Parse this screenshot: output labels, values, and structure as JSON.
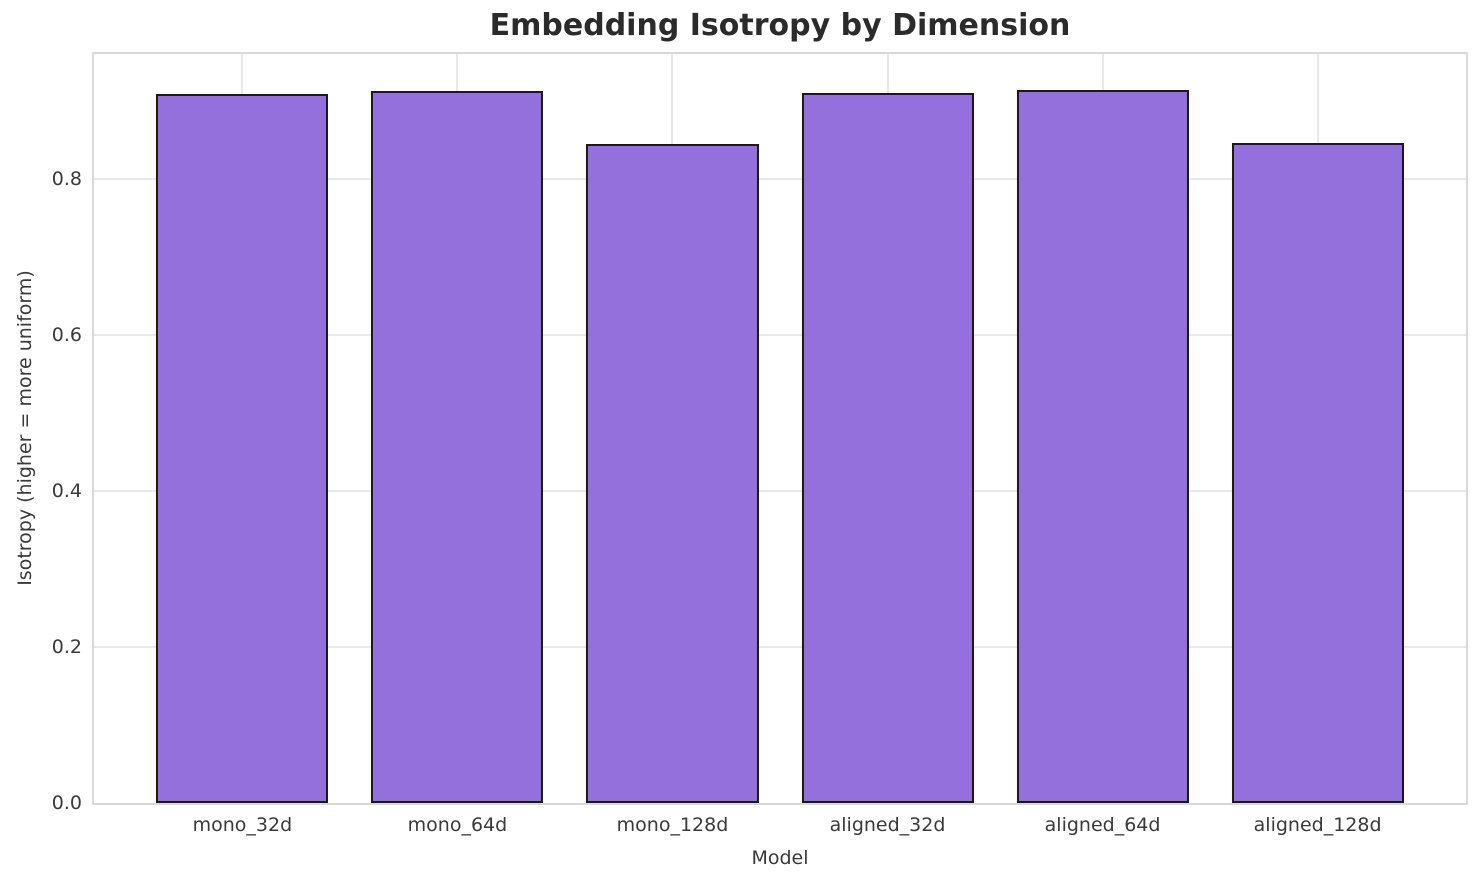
{
  "chart_data": {
    "type": "bar",
    "title": "Embedding Isotropy by Dimension",
    "xlabel": "Model",
    "ylabel": "Isotropy (higher = more uniform)",
    "categories": [
      "mono_32d",
      "mono_64d",
      "mono_128d",
      "aligned_32d",
      "aligned_64d",
      "aligned_128d"
    ],
    "values": [
      0.909,
      0.913,
      0.845,
      0.91,
      0.914,
      0.846
    ],
    "ylim": [
      0,
      0.96
    ],
    "xlim": [
      -0.69,
      5.69
    ],
    "yticks": [
      0.0,
      0.2,
      0.4,
      0.6,
      0.8
    ],
    "ytick_labels": [
      "0.0",
      "0.2",
      "0.4",
      "0.6",
      "0.8"
    ],
    "bar_width_units": 0.8,
    "grid": true,
    "legend": "none",
    "colors": {
      "bar_fill": "#9370DB",
      "bar_edge": "#1a1a1a",
      "grid_line": "#e9e9e9",
      "frame": "#d9d9d9",
      "title_text": "#2b2b2b",
      "tick_text": "#3a3a3a",
      "background": "#ffffff"
    }
  }
}
